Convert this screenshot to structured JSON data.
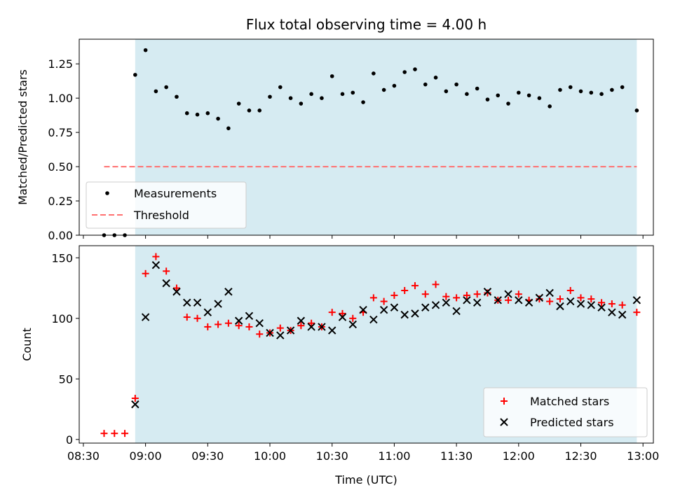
{
  "chart_data": [
    {
      "type": "scatter",
      "title": "Flux total observing time = 4.00 h",
      "ylabel": "Matched/Predicted stars",
      "xlabel": "",
      "xlim": [
        "08:28",
        "13:05"
      ],
      "ylim": [
        0,
        1.43
      ],
      "xticks": [
        "08:30",
        "09:00",
        "09:30",
        "10:00",
        "10:30",
        "11:00",
        "11:30",
        "12:00",
        "12:30",
        "13:00"
      ],
      "xtick_labels_visible": false,
      "yticks": [
        0.0,
        0.25,
        0.5,
        0.75,
        1.0,
        1.25
      ],
      "ytick_labels": [
        "0.00",
        "0.25",
        "0.50",
        "0.75",
        "1.00",
        "1.25"
      ],
      "shaded_region": {
        "start": "08:55",
        "end": "12:57",
        "color": "#add8e6"
      },
      "legend": {
        "position": "lower-left",
        "entries": [
          "Measurements",
          "Threshold"
        ]
      },
      "series": [
        {
          "name": "Measurements",
          "marker": "dot",
          "color": "#000000",
          "x": [
            "08:40",
            "08:45",
            "08:50",
            "08:55",
            "09:00",
            "09:05",
            "09:10",
            "09:15",
            "09:20",
            "09:25",
            "09:30",
            "09:35",
            "09:40",
            "09:45",
            "09:50",
            "09:55",
            "10:00",
            "10:05",
            "10:10",
            "10:15",
            "10:20",
            "10:25",
            "10:30",
            "10:35",
            "10:40",
            "10:45",
            "10:50",
            "10:55",
            "11:00",
            "11:05",
            "11:10",
            "11:15",
            "11:20",
            "11:25",
            "11:30",
            "11:35",
            "11:40",
            "11:45",
            "11:50",
            "11:55",
            "12:00",
            "12:05",
            "12:10",
            "12:15",
            "12:20",
            "12:25",
            "12:30",
            "12:35",
            "12:40",
            "12:45",
            "12:50",
            "12:57"
          ],
          "y": [
            0.0,
            0.0,
            0.0,
            1.17,
            1.35,
            1.05,
            1.08,
            1.01,
            0.89,
            0.88,
            0.89,
            0.85,
            0.78,
            0.96,
            0.91,
            0.91,
            1.01,
            1.08,
            1.0,
            0.96,
            1.03,
            1.0,
            1.16,
            1.03,
            1.04,
            0.97,
            1.18,
            1.06,
            1.09,
            1.19,
            1.21,
            1.1,
            1.15,
            1.05,
            1.1,
            1.03,
            1.07,
            0.99,
            1.02,
            0.96,
            1.04,
            1.02,
            1.0,
            0.94,
            1.06,
            1.08,
            1.05,
            1.04,
            1.03,
            1.06,
            1.08,
            0.91
          ]
        },
        {
          "name": "Threshold",
          "style": "dashed",
          "color": "#ff6f6f",
          "x": [
            "08:40",
            "12:57"
          ],
          "y": [
            0.5,
            0.5
          ]
        }
      ]
    },
    {
      "type": "scatter",
      "title": "",
      "ylabel": "Count",
      "xlabel": "Time (UTC)",
      "xlim": [
        "08:28",
        "13:05"
      ],
      "ylim": [
        -3,
        160
      ],
      "xticks": [
        "08:30",
        "09:00",
        "09:30",
        "10:00",
        "10:30",
        "11:00",
        "11:30",
        "12:00",
        "12:30",
        "13:00"
      ],
      "xtick_labels": [
        "08:30",
        "09:00",
        "09:30",
        "10:00",
        "10:30",
        "11:00",
        "11:30",
        "12:00",
        "12:30",
        "13:00"
      ],
      "yticks": [
        0,
        50,
        100,
        150
      ],
      "ytick_labels": [
        "0",
        "50",
        "100",
        "150"
      ],
      "shaded_region": {
        "start": "08:55",
        "end": "12:57",
        "color": "#add8e6"
      },
      "legend": {
        "position": "lower-right",
        "entries": [
          "Matched stars",
          "Predicted stars"
        ]
      },
      "series": [
        {
          "name": "Matched stars",
          "marker": "plus",
          "color": "#ff0000",
          "x": [
            "08:40",
            "08:45",
            "08:50",
            "08:55",
            "09:00",
            "09:05",
            "09:10",
            "09:15",
            "09:20",
            "09:25",
            "09:30",
            "09:35",
            "09:40",
            "09:45",
            "09:50",
            "09:55",
            "10:00",
            "10:05",
            "10:10",
            "10:15",
            "10:20",
            "10:25",
            "10:30",
            "10:35",
            "10:40",
            "10:45",
            "10:50",
            "10:55",
            "11:00",
            "11:05",
            "11:10",
            "11:15",
            "11:20",
            "11:25",
            "11:30",
            "11:35",
            "11:40",
            "11:45",
            "11:50",
            "11:55",
            "12:00",
            "12:05",
            "12:10",
            "12:15",
            "12:20",
            "12:25",
            "12:30",
            "12:35",
            "12:40",
            "12:45",
            "12:50",
            "12:57"
          ],
          "y": [
            5,
            5,
            5,
            34,
            137,
            151,
            139,
            125,
            101,
            100,
            93,
            95,
            96,
            94,
            93,
            87,
            88,
            92,
            90,
            94,
            96,
            93,
            105,
            104,
            100,
            105,
            117,
            114,
            119,
            123,
            127,
            120,
            128,
            118,
            117,
            119,
            120,
            121,
            115,
            115,
            120,
            115,
            116,
            114,
            116,
            123,
            117,
            116,
            113,
            112,
            111,
            105
          ]
        },
        {
          "name": "Predicted stars",
          "marker": "x",
          "color": "#000000",
          "x": [
            "08:55",
            "09:00",
            "09:05",
            "09:10",
            "09:15",
            "09:20",
            "09:25",
            "09:30",
            "09:35",
            "09:40",
            "09:45",
            "09:50",
            "09:55",
            "10:00",
            "10:05",
            "10:10",
            "10:15",
            "10:20",
            "10:25",
            "10:30",
            "10:35",
            "10:40",
            "10:45",
            "10:50",
            "10:55",
            "11:00",
            "11:05",
            "11:10",
            "11:15",
            "11:20",
            "11:25",
            "11:30",
            "11:35",
            "11:40",
            "11:45",
            "11:50",
            "11:55",
            "12:00",
            "12:05",
            "12:10",
            "12:15",
            "12:20",
            "12:25",
            "12:30",
            "12:35",
            "12:40",
            "12:45",
            "12:50",
            "12:57"
          ],
          "y": [
            29,
            101,
            144,
            129,
            122,
            113,
            113,
            105,
            112,
            122,
            98,
            102,
            96,
            88,
            86,
            90,
            98,
            93,
            93,
            90,
            101,
            95,
            107,
            99,
            107,
            109,
            103,
            104,
            109,
            111,
            113,
            106,
            115,
            113,
            122,
            115,
            120,
            115,
            113,
            117,
            121,
            110,
            114,
            112,
            111,
            109,
            105,
            103,
            115
          ]
        }
      ]
    }
  ]
}
